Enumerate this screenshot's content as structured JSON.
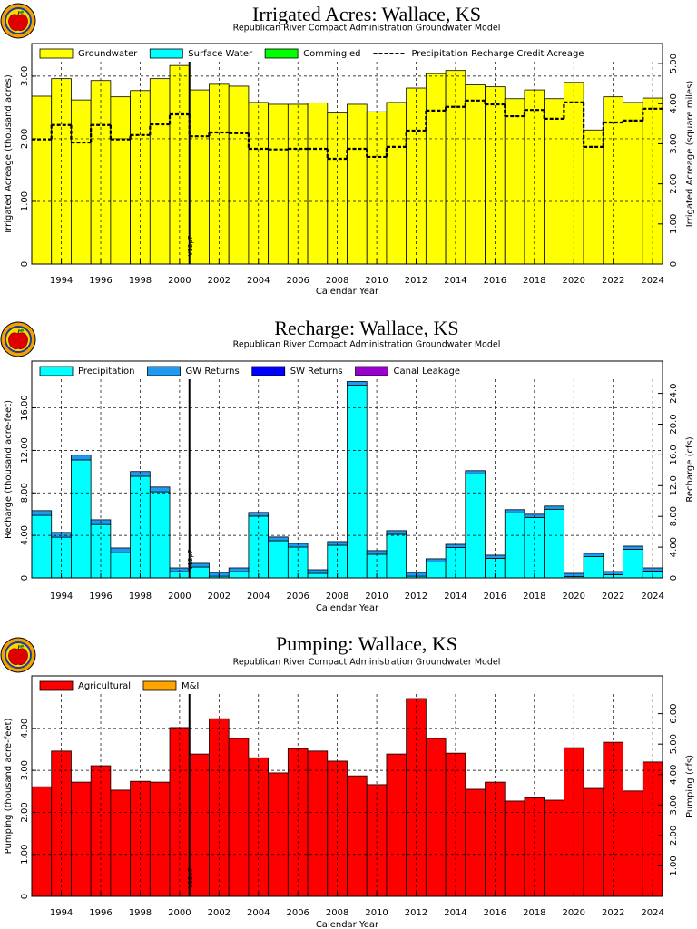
{
  "chart_data": [
    {
      "type": "bar",
      "stacked": true,
      "title": "Irrigated Acres: Wallace, KS",
      "subtitle": "Republican River Compact Administration Groundwater Model",
      "x_label": "Calendar Year",
      "y_label": "Irrigated Acreage (thousand acres)",
      "y2_label": "Irrigated Acreage (square miles)",
      "x": [
        1993,
        1994,
        1995,
        1996,
        1997,
        1998,
        1999,
        2000,
        2001,
        2002,
        2003,
        2004,
        2005,
        2006,
        2007,
        2008,
        2009,
        2010,
        2011,
        2012,
        2013,
        2014,
        2015,
        2016,
        2017,
        2018,
        2019,
        2020,
        2021,
        2022,
        2023,
        2024
      ],
      "xlim": [
        1992.5,
        2024.5
      ],
      "xticks": [
        1994,
        1996,
        1998,
        2000,
        2002,
        2004,
        2006,
        2008,
        2010,
        2012,
        2014,
        2016,
        2018,
        2020,
        2022,
        2024
      ],
      "ylim": [
        0,
        3.52
      ],
      "yticks": [
        0,
        {
          "value": 1,
          "label": "1.00"
        },
        {
          "value": 2,
          "label": "2.00"
        },
        {
          "value": 3,
          "label": "3.00"
        }
      ],
      "y2lim": [
        0,
        5.5
      ],
      "y2ticks": [
        0,
        {
          "value": 1,
          "label": "1.00"
        },
        {
          "value": 2,
          "label": "2.00"
        },
        {
          "value": 3,
          "label": "3.00"
        },
        {
          "value": 4,
          "label": "4.00"
        },
        {
          "value": 5,
          "label": "5.00"
        }
      ],
      "grid": true,
      "annotations": [
        {
          "text": "V12p7",
          "x": 2000.5
        }
      ],
      "series": [
        {
          "name": "Groundwater",
          "color": "#ffff00",
          "values": [
            2.68,
            2.96,
            2.62,
            2.93,
            2.67,
            2.77,
            2.96,
            3.17,
            2.78,
            2.87,
            2.84,
            2.58,
            2.55,
            2.55,
            2.57,
            2.41,
            2.55,
            2.43,
            2.58,
            2.81,
            3.04,
            3.09,
            2.86,
            2.83,
            2.64,
            2.78,
            2.64,
            2.9,
            2.14,
            2.67,
            2.58,
            2.65
          ]
        },
        {
          "name": "Surface Water",
          "color": "#00ffff",
          "values": [
            0,
            0,
            0,
            0,
            0,
            0,
            0,
            0,
            0,
            0,
            0,
            0,
            0,
            0,
            0,
            0,
            0,
            0,
            0,
            0,
            0,
            0,
            0,
            0,
            0,
            0,
            0,
            0,
            0,
            0,
            0,
            0
          ]
        },
        {
          "name": "Commingled",
          "color": "#00ff00",
          "values": [
            0,
            0,
            0,
            0,
            0,
            0,
            0,
            0,
            0,
            0,
            0,
            0,
            0,
            0,
            0,
            0,
            0,
            0,
            0,
            0,
            0,
            0,
            0,
            0,
            0,
            0,
            0,
            0,
            0,
            0,
            0,
            0
          ]
        },
        {
          "name": "Precipitation Recharge Credit Acreage",
          "type": "step",
          "line_style": "dashed",
          "color": "#000000",
          "values": [
            1.99,
            2.22,
            1.94,
            2.22,
            1.99,
            2.06,
            2.23,
            2.39,
            2.04,
            2.1,
            2.09,
            1.84,
            1.83,
            1.84,
            1.84,
            1.68,
            1.84,
            1.71,
            1.87,
            2.13,
            2.45,
            2.51,
            2.61,
            2.55,
            2.36,
            2.46,
            2.32,
            2.58,
            1.87,
            2.26,
            2.29,
            2.48
          ]
        }
      ]
    },
    {
      "type": "bar",
      "stacked": true,
      "title": "Recharge: Wallace, KS",
      "subtitle": "Republican River Compact Administration Groundwater Model",
      "x_label": "Calendar Year",
      "y_label": "Recharge (thousand acre-feet)",
      "y2_label": "Recharge (cfs)",
      "x": [
        1993,
        1994,
        1995,
        1996,
        1997,
        1998,
        1999,
        2000,
        2001,
        2002,
        2003,
        2004,
        2005,
        2006,
        2007,
        2008,
        2009,
        2010,
        2011,
        2012,
        2013,
        2014,
        2015,
        2016,
        2017,
        2018,
        2019,
        2020,
        2021,
        2022,
        2023,
        2024
      ],
      "xlim": [
        1992.5,
        2024.5
      ],
      "xticks": [
        1994,
        1996,
        1998,
        2000,
        2002,
        2004,
        2006,
        2008,
        2010,
        2012,
        2014,
        2016,
        2018,
        2020,
        2022,
        2024
      ],
      "ylim": [
        0,
        20.4
      ],
      "yticks": [
        0,
        {
          "value": 4,
          "label": "4.00"
        },
        {
          "value": 8,
          "label": "8.00"
        },
        {
          "value": 12,
          "label": "12.00"
        },
        {
          "value": 16,
          "label": "16.00"
        }
      ],
      "y2lim": [
        0,
        28.2
      ],
      "y2ticks": [
        0,
        {
          "value": 4,
          "label": "4.00"
        },
        {
          "value": 8,
          "label": "8.00"
        },
        {
          "value": 12,
          "label": "12.0"
        },
        {
          "value": 16,
          "label": "16.0"
        },
        {
          "value": 20,
          "label": "20.0"
        },
        {
          "value": 24,
          "label": "24.0"
        }
      ],
      "grid": true,
      "annotations": [
        {
          "text": "V12p7",
          "x": 2000.5
        }
      ],
      "series": [
        {
          "name": "Precipitation",
          "color": "#00ffff",
          "values": [
            5.88,
            3.83,
            11.1,
            5.02,
            2.37,
            9.56,
            8.1,
            0.59,
            1.02,
            0.16,
            0.59,
            5.81,
            3.5,
            2.9,
            0.42,
            3.07,
            18.13,
            2.22,
            4.1,
            0.16,
            1.5,
            2.86,
            9.79,
            1.84,
            6.12,
            5.69,
            6.46,
            0.13,
            2.01,
            0.3,
            2.69,
            0.64
          ]
        },
        {
          "name": "GW Returns",
          "color": "#1e9bf0",
          "values": [
            0.45,
            0.45,
            0.45,
            0.45,
            0.45,
            0.45,
            0.45,
            0.35,
            0.35,
            0.35,
            0.35,
            0.35,
            0.35,
            0.35,
            0.35,
            0.35,
            0.35,
            0.35,
            0.35,
            0.35,
            0.3,
            0.3,
            0.3,
            0.3,
            0.3,
            0.3,
            0.3,
            0.3,
            0.3,
            0.3,
            0.3,
            0.3
          ]
        },
        {
          "name": "SW Returns",
          "color": "#0000ff",
          "values": [
            0,
            0,
            0,
            0,
            0,
            0,
            0,
            0,
            0,
            0,
            0,
            0,
            0,
            0,
            0,
            0,
            0,
            0,
            0,
            0,
            0,
            0,
            0,
            0,
            0,
            0,
            0,
            0,
            0,
            0,
            0,
            0
          ]
        },
        {
          "name": "Canal Leakage",
          "color": "#9900cc",
          "values": [
            0,
            0,
            0,
            0,
            0,
            0,
            0,
            0,
            0,
            0,
            0,
            0,
            0,
            0,
            0,
            0,
            0,
            0,
            0,
            0,
            0,
            0,
            0,
            0,
            0,
            0,
            0,
            0,
            0,
            0,
            0,
            0
          ]
        }
      ]
    },
    {
      "type": "bar",
      "stacked": true,
      "title": "Pumping: Wallace, KS",
      "subtitle": "Republican River Compact Administration Groundwater Model",
      "x_label": "Calendar Year",
      "y_label": "Pumping (thousand acre-feet)",
      "y2_label": "Pumping (cfs)",
      "x": [
        1993,
        1994,
        1995,
        1996,
        1997,
        1998,
        1999,
        2000,
        2001,
        2002,
        2003,
        2004,
        2005,
        2006,
        2007,
        2008,
        2009,
        2010,
        2011,
        2012,
        2013,
        2014,
        2015,
        2016,
        2017,
        2018,
        2019,
        2020,
        2021,
        2022,
        2023,
        2024
      ],
      "xlim": [
        1992.5,
        2024.5
      ],
      "xticks": [
        1994,
        1996,
        1998,
        2000,
        2002,
        2004,
        2006,
        2008,
        2010,
        2012,
        2014,
        2016,
        2018,
        2020,
        2022,
        2024
      ],
      "ylim": [
        0,
        5.25
      ],
      "yticks": [
        0,
        {
          "value": 1,
          "label": "1.00"
        },
        {
          "value": 2,
          "label": "2.00"
        },
        {
          "value": 3,
          "label": "3.00"
        },
        {
          "value": 4,
          "label": "4.00"
        }
      ],
      "y2lim": [
        0,
        7.24
      ],
      "y2ticks": [
        {
          "value": 1,
          "label": "1.00"
        },
        {
          "value": 2,
          "label": "2.00"
        },
        {
          "value": 3,
          "label": "3.00"
        },
        {
          "value": 4,
          "label": "4.00"
        },
        {
          "value": 5,
          "label": "5.00"
        },
        {
          "value": 6,
          "label": "6.00"
        }
      ],
      "grid": true,
      "annotations": [
        {
          "text": "V12p7",
          "x": 2000.5
        }
      ],
      "series": [
        {
          "name": "Agricultural",
          "color": "#ff0000",
          "values": [
            2.61,
            3.46,
            2.72,
            3.11,
            2.53,
            2.74,
            2.72,
            4.02,
            3.39,
            4.23,
            3.76,
            3.3,
            2.94,
            3.52,
            3.46,
            3.22,
            2.87,
            2.66,
            3.39,
            4.71,
            3.76,
            3.41,
            2.55,
            2.72,
            2.27,
            2.35,
            2.29,
            3.54,
            2.57,
            3.67,
            2.51,
            3.2
          ]
        },
        {
          "name": "M&I",
          "color": "#ffa500",
          "values": [
            0,
            0,
            0,
            0,
            0,
            0,
            0,
            0,
            0,
            0,
            0,
            0,
            0,
            0,
            0,
            0,
            0,
            0,
            0,
            0,
            0,
            0,
            0,
            0,
            0,
            0,
            0,
            0,
            0,
            0,
            0,
            0
          ]
        }
      ]
    }
  ]
}
